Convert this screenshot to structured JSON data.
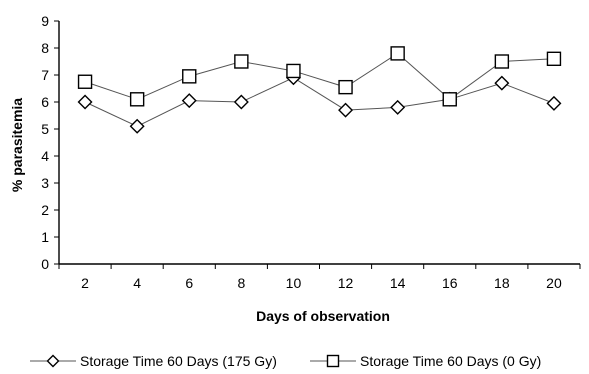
{
  "chart_data": {
    "type": "line",
    "title": "",
    "xlabel": "Days of observation",
    "ylabel": "% parasitemia",
    "x": [
      2,
      4,
      6,
      8,
      10,
      12,
      14,
      16,
      18,
      20
    ],
    "ylim": [
      0,
      9
    ],
    "yticks": [
      0,
      1,
      2,
      3,
      4,
      5,
      6,
      7,
      8,
      9
    ],
    "grid": false,
    "legend_position": "bottom",
    "series": [
      {
        "name": "Storage Time 60 Days (175 Gy)",
        "marker": "diamond",
        "values": [
          6.0,
          5.1,
          6.05,
          6.0,
          6.9,
          5.7,
          5.8,
          6.1,
          6.7,
          5.95
        ]
      },
      {
        "name": "Storage Time 60 Days (0 Gy)",
        "marker": "square",
        "values": [
          6.75,
          6.1,
          6.95,
          7.5,
          7.15,
          6.55,
          7.8,
          6.1,
          7.5,
          7.6
        ]
      }
    ],
    "colors": {
      "line": "#555555",
      "marker_stroke": "#000000",
      "marker_fill": "#ffffff",
      "axis": "#000000"
    }
  }
}
